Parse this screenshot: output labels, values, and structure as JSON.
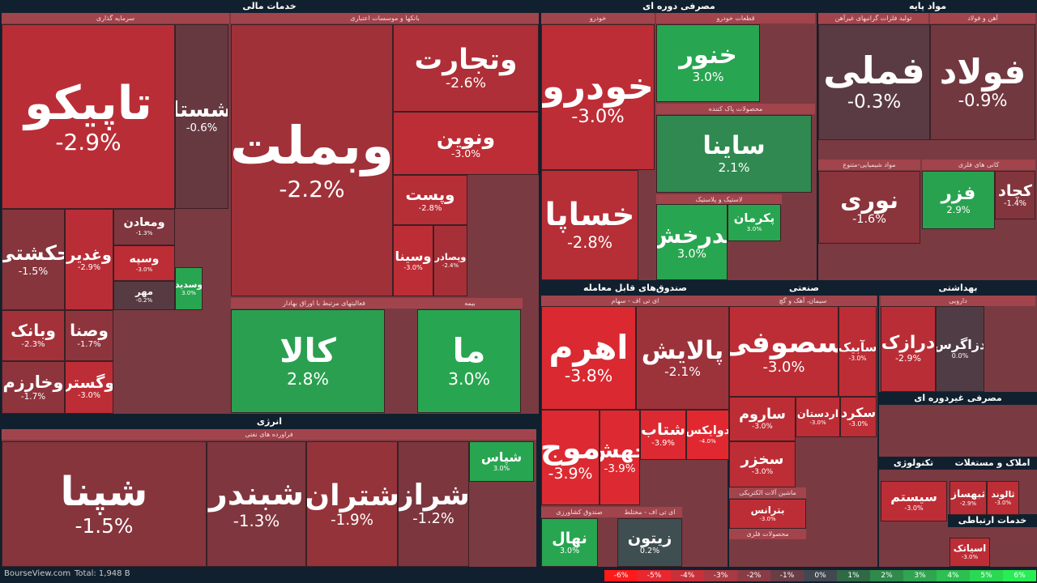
{
  "sectors": [
    "خدمات مالی",
    "مصرفی دوره ای",
    "مواد پایه",
    "انرژی",
    "صندوق‌های قابل معامله",
    "صنعتی",
    "بهداشتی",
    "مصرفی غیردوره ای",
    "تکنولوژی",
    "املاک و مستغلات",
    "خدمات ارتباطی"
  ],
  "groups": [
    "سرمایه گذاری",
    "بانکها و موسسات اعتباری",
    "خودرو",
    "قطعات خودرو",
    "محصولات پاک کننده",
    "لاستیک و پلاستیک",
    "تولید فلزات گرانبهای غیرآهن",
    "آهن و فولاد",
    "مواد شیمیایی-متنوع",
    "کانی های فلزی",
    "فعالیتهای مرتبط با اوراق بهادار",
    "بیمه",
    "فراورده های نفتی",
    "ای تی اف - سهام",
    "سیمان، آهک و گچ",
    "دارویی",
    "صندوق کشاورزی",
    "ای تی اف - مختلط",
    "ماشین آلات الکتریکی",
    "محصولات فلزی"
  ],
  "tiles": [
    {
      "label": "تاپیکو",
      "change": "-2.9%"
    },
    {
      "label": "شستا",
      "change": "-0.6%"
    },
    {
      "label": "حکشتی",
      "change": "-1.5%"
    },
    {
      "label": "وغدیر",
      "change": "-2.9%"
    },
    {
      "label": "ومعادن",
      "change": "-1.3%"
    },
    {
      "label": "وبانک",
      "change": "-2.3%"
    },
    {
      "label": "وخارزم",
      "change": "-1.7%"
    },
    {
      "label": "وصنا",
      "change": "-1.7%"
    },
    {
      "label": "وگستر",
      "change": "-3.0%"
    },
    {
      "label": "وبملت",
      "change": "-2.2%"
    },
    {
      "label": "وتجارت",
      "change": "-2.6%"
    },
    {
      "label": "ونوین",
      "change": "-3.0%"
    },
    {
      "label": "وپست",
      "change": "-2.8%"
    },
    {
      "label": "وسینا",
      "change": "-3.0%"
    },
    {
      "label": "وپصادر",
      "change": "-2.4%"
    },
    {
      "label": "کالا",
      "change": "2.8%"
    },
    {
      "label": "ما",
      "change": "3.0%"
    },
    {
      "label": "خودرو",
      "change": "-3.0%"
    },
    {
      "label": "خساپا",
      "change": "-2.8%"
    },
    {
      "label": "خنور",
      "change": "3.0%"
    },
    {
      "label": "ساینا",
      "change": "2.1%"
    },
    {
      "label": "پدرخش",
      "change": "3.0%"
    },
    {
      "label": "پکرمان",
      "change": "3.0%"
    },
    {
      "label": "فملی",
      "change": "-0.3%"
    },
    {
      "label": "فولاد",
      "change": "-0.9%"
    },
    {
      "label": "نوری",
      "change": "-1.6%"
    },
    {
      "label": "فزر",
      "change": "2.9%"
    },
    {
      "label": "کچاد",
      "change": "-1.4%"
    },
    {
      "label": "شپنا",
      "change": "-1.5%"
    },
    {
      "label": "شبندر",
      "change": "-1.3%"
    },
    {
      "label": "شتران",
      "change": "-1.9%"
    },
    {
      "label": "شراز",
      "change": "-1.2%"
    },
    {
      "label": "شپاس",
      "change": "3.0%"
    },
    {
      "label": "اهرم",
      "change": "-3.8%"
    },
    {
      "label": "پالایش",
      "change": "-2.1%"
    },
    {
      "label": "موج",
      "change": "-3.9%"
    },
    {
      "label": "جهش",
      "change": "-3.9%"
    },
    {
      "label": "شتاب",
      "change": "-3.9%"
    },
    {
      "label": "دوایکس",
      "change": "-4.0%"
    },
    {
      "label": "نهال",
      "change": "3.0%"
    },
    {
      "label": "زیتون",
      "change": "0.2%"
    },
    {
      "label": "سصوفی",
      "change": "-3.0%"
    },
    {
      "label": "سآبیک",
      "change": "-3.0%"
    },
    {
      "label": "ساروم",
      "change": "-3.0%"
    },
    {
      "label": "اردستان",
      "change": "-3.0%"
    },
    {
      "label": "سکرد",
      "change": "-3.0%"
    },
    {
      "label": "سخزر",
      "change": "-3.0%"
    },
    {
      "label": "بترانس",
      "change": "-3.0%"
    },
    {
      "label": "درازک",
      "change": "-2.9%"
    },
    {
      "label": "دزاگرس",
      "change": "0.0%"
    },
    {
      "label": "سیستم",
      "change": "-3.0%"
    },
    {
      "label": "ثبهساز",
      "change": "-2.9%"
    },
    {
      "label": "ثالوند",
      "change": "-3.0%"
    },
    {
      "label": "اسیاتک",
      "change": "-3.0%"
    },
    {
      "label": "وسپه",
      "change": "-3.0%"
    },
    {
      "label": "مهر",
      "change": "-0.2%"
    },
    {
      "label": "وسدید",
      "change": "3.0%"
    }
  ],
  "footer": {
    "site": "BourseView.com",
    "total": "Total: 1,948 B"
  },
  "legend": [
    "-6%",
    "-5%",
    "-4%",
    "-3%",
    "-2%",
    "-1%",
    "0%",
    "1%",
    "2%",
    "3%",
    "4%",
    "5%",
    "6%"
  ]
}
